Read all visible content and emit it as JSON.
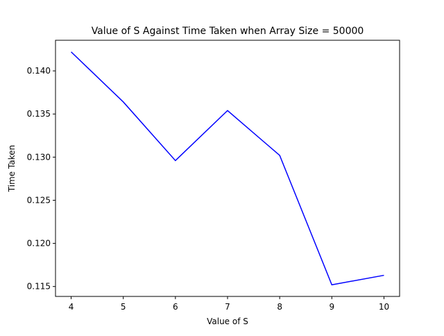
{
  "chart_data": {
    "type": "line",
    "title": "Value of S Against Time Taken when Array Size = 50000",
    "xlabel": "Value of S",
    "ylabel": "Time Taken",
    "x": [
      4,
      5,
      6,
      7,
      8,
      9,
      10
    ],
    "series": [
      {
        "values": [
          0.1422,
          0.1364,
          0.1296,
          0.1354,
          0.1302,
          0.1152,
          0.1163
        ],
        "color": "#0000ff"
      }
    ],
    "xlim": [
      3.7,
      10.3
    ],
    "ylim": [
      0.11385,
      0.14355
    ],
    "xticks": [
      4,
      5,
      6,
      7,
      8,
      9,
      10
    ],
    "yticks": [
      0.115,
      0.12,
      0.125,
      0.13,
      0.135,
      0.14
    ],
    "ytick_labels": [
      "0.115",
      "0.120",
      "0.125",
      "0.130",
      "0.135",
      "0.140"
    ],
    "grid": false,
    "legend": false
  }
}
